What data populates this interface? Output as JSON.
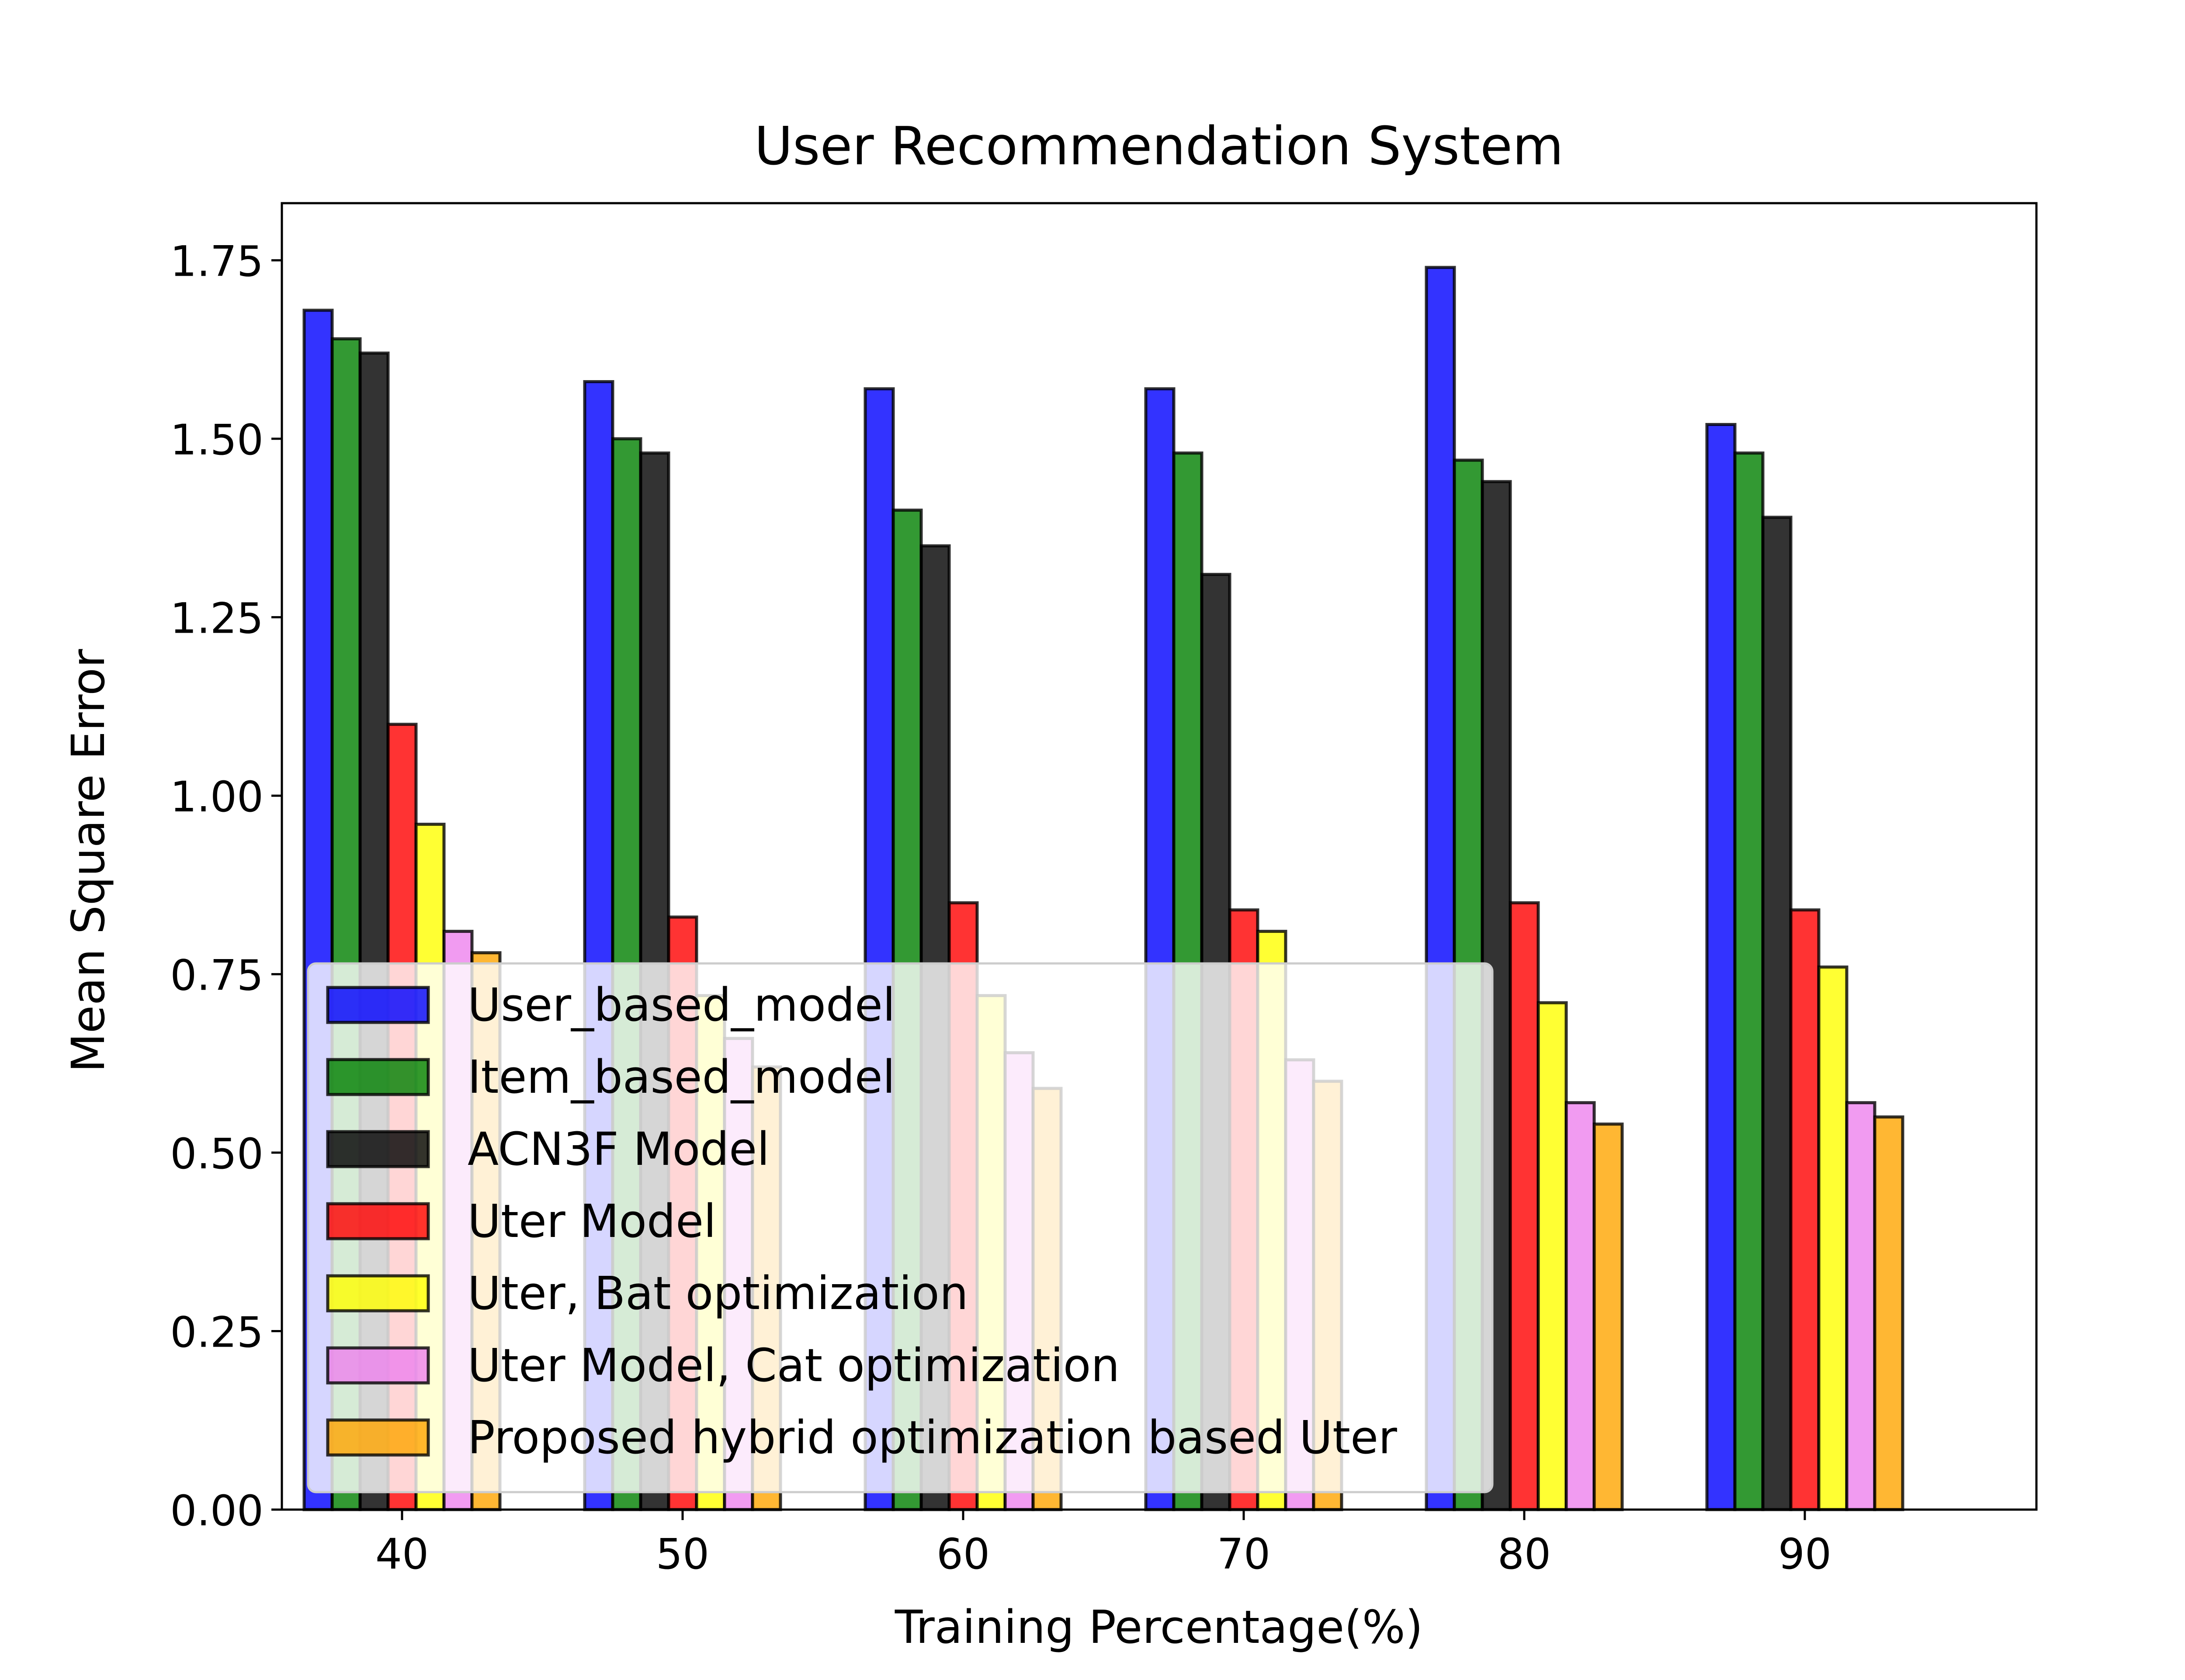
{
  "chart_data": {
    "type": "bar",
    "title": "User Recommendation System",
    "xlabel": "Training Percentage(%)",
    "ylabel": "Mean Square Error",
    "categories": [
      "40",
      "50",
      "60",
      "70",
      "80",
      "90"
    ],
    "ylim": [
      0,
      1.83
    ],
    "yticks": [
      "0.00",
      "0.25",
      "0.50",
      "0.75",
      "1.00",
      "1.25",
      "1.50",
      "1.75"
    ],
    "grid": false,
    "legend_position": "lower-left",
    "series": [
      {
        "name": "User_based_model",
        "color": "#0000ff",
        "values": [
          1.68,
          1.58,
          1.57,
          1.57,
          1.74,
          1.52
        ]
      },
      {
        "name": "Item_based_model",
        "color": "#008000",
        "values": [
          1.64,
          1.5,
          1.4,
          1.48,
          1.47,
          1.48
        ]
      },
      {
        "name": "ACN3F Model",
        "color": "#000000",
        "values": [
          1.62,
          1.48,
          1.35,
          1.31,
          1.44,
          1.39
        ]
      },
      {
        "name": "Uter Model",
        "color": "#ff0000",
        "values": [
          1.1,
          0.83,
          0.85,
          0.84,
          0.85,
          0.84
        ]
      },
      {
        "name": "Uter, Bat optimization",
        "color": "#ffff00",
        "values": [
          0.96,
          0.72,
          0.72,
          0.81,
          0.71,
          0.76
        ]
      },
      {
        "name": "Uter Model, Cat optimization",
        "color": "#ee82ee",
        "values": [
          0.81,
          0.66,
          0.64,
          0.63,
          0.57,
          0.57
        ]
      },
      {
        "name": "Proposed hybrid optimization based Uter",
        "color": "#ffa500",
        "values": [
          0.78,
          0.62,
          0.59,
          0.6,
          0.54,
          0.55
        ]
      }
    ]
  }
}
